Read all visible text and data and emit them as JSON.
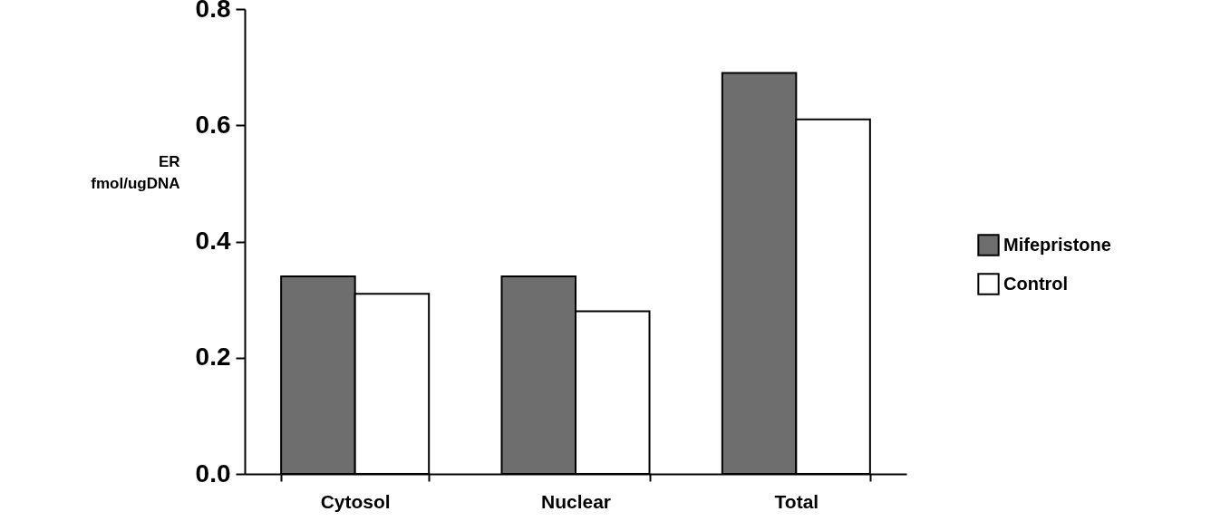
{
  "chart_data": {
    "type": "bar",
    "ylabel": "ER\nfmol/ugDNA",
    "categories": [
      "Cytosol",
      "Nuclear",
      "Total"
    ],
    "series": [
      {
        "name": "Mifepristone",
        "color": "#6e6e6e",
        "values": [
          0.34,
          0.34,
          0.69
        ]
      },
      {
        "name": "Control",
        "color": "#ffffff",
        "values": [
          0.31,
          0.28,
          0.61
        ]
      }
    ],
    "ylim": [
      0,
      0.8
    ],
    "yticks": [
      {
        "value": 0,
        "label": "0.0"
      },
      {
        "value": 0.2,
        "label": "0.2"
      },
      {
        "value": 0.4,
        "label": "0.4"
      },
      {
        "value": 0.6,
        "label": "0.6"
      },
      {
        "value": 0.8,
        "label": "0.8"
      }
    ],
    "grid": false,
    "legend": "right"
  }
}
